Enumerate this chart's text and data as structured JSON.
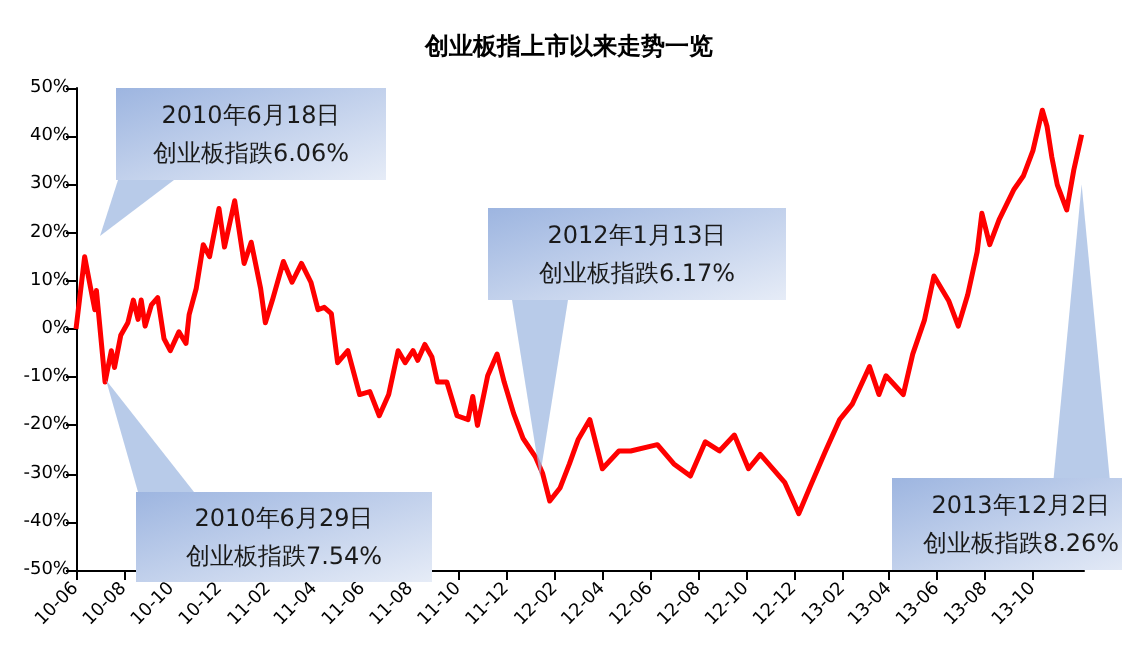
{
  "chart_data": {
    "type": "line",
    "title": "创业板指上市以来走势一览",
    "x": [
      "2010-06-01",
      "2010-06-12",
      "2010-06-19",
      "2010-06-25",
      "2010-06-27",
      "2010-07-08",
      "2010-07-16",
      "2010-07-20",
      "2010-07-28",
      "2010-08-06",
      "2010-08-13",
      "2010-08-19",
      "2010-08-23",
      "2010-08-28",
      "2010-09-05",
      "2010-09-13",
      "2010-09-21",
      "2010-09-29",
      "2010-10-10",
      "2010-10-19",
      "2010-10-23",
      "2010-11-01",
      "2010-11-10",
      "2010-11-18",
      "2010-11-30",
      "2010-12-07",
      "2010-12-20",
      "2011-01-01",
      "2011-01-10",
      "2011-01-22",
      "2011-01-28",
      "2011-02-06",
      "2011-02-20",
      "2011-03-03",
      "2011-03-15",
      "2011-03-27",
      "2011-04-05",
      "2011-04-13",
      "2011-04-22",
      "2011-04-30",
      "2011-05-13",
      "2011-05-28",
      "2011-06-10",
      "2011-06-22",
      "2011-07-04",
      "2011-07-16",
      "2011-07-25",
      "2011-08-04",
      "2011-08-10",
      "2011-08-19",
      "2011-08-28",
      "2011-09-04",
      "2011-09-16",
      "2011-09-29",
      "2011-10-13",
      "2011-10-19",
      "2011-10-25",
      "2011-11-07",
      "2011-11-19",
      "2011-11-28",
      "2011-12-10",
      "2011-12-22",
      "2012-01-07",
      "2012-01-16",
      "2012-01-25",
      "2012-02-07",
      "2012-02-19",
      "2012-03-01",
      "2012-03-16",
      "2012-04-01",
      "2012-04-22",
      "2012-05-07",
      "2012-06-10",
      "2012-07-01",
      "2012-07-22",
      "2012-08-10",
      "2012-08-28",
      "2012-09-16",
      "2012-10-04",
      "2012-10-19",
      "2012-11-19",
      "2012-12-07",
      "2012-12-22",
      "2013-01-10",
      "2013-01-28",
      "2013-02-13",
      "2013-03-07",
      "2013-03-19",
      "2013-03-28",
      "2013-04-19",
      "2013-05-01",
      "2013-05-16",
      "2013-05-28",
      "2013-06-16",
      "2013-06-28",
      "2013-07-10",
      "2013-07-22",
      "2013-07-28",
      "2013-08-07",
      "2013-08-19",
      "2013-09-07",
      "2013-09-19",
      "2013-10-01",
      "2013-10-13",
      "2013-10-19",
      "2013-10-25",
      "2013-11-01",
      "2013-11-13",
      "2013-11-22",
      "2013-12-02"
    ],
    "series": [
      {
        "color": "#ff0000",
        "values": [
          0,
          15,
          9,
          4,
          8,
          -11,
          -4.5,
          -8,
          -1.3,
          1.3,
          6,
          2,
          6,
          0.6,
          5,
          6.5,
          -2,
          -4.5,
          -0.6,
          -3,
          3,
          8.4,
          17.5,
          15,
          25,
          17,
          26.6,
          13.6,
          18,
          8.4,
          1.3,
          6,
          14,
          9.7,
          13.6,
          9.7,
          4,
          4.5,
          3.2,
          -7,
          -4.5,
          -13.6,
          -13,
          -18,
          -13.6,
          -4.5,
          -7,
          -4.5,
          -6.5,
          -3.2,
          -5.8,
          -11,
          -11,
          -18,
          -18.8,
          -14,
          -20,
          -9.7,
          -5.2,
          -11,
          -17.5,
          -22.7,
          -26.6,
          -30,
          -35.7,
          -33,
          -28,
          -23,
          -18.8,
          -29,
          -25.3,
          -25.3,
          -24,
          -28,
          -30.5,
          -23.4,
          -25.3,
          -22,
          -29,
          -26,
          -31.8,
          -38.3,
          -32.5,
          -25.3,
          -18.8,
          -15.6,
          -7.8,
          -13.6,
          -9.7,
          -13.6,
          -5.2,
          1.9,
          11,
          5.8,
          0.6,
          7.1,
          16,
          24,
          17.5,
          22.7,
          29,
          31.8,
          37,
          45.4,
          42,
          35.7,
          29.9,
          24.7,
          33,
          40.3
        ]
      }
    ],
    "xlim": [
      "2010-06-01",
      "2013-12-05"
    ],
    "xticks": [
      {
        "value": "2010-06-01",
        "label": "10-06"
      },
      {
        "value": "2010-08-01",
        "label": "10-08"
      },
      {
        "value": "2010-10-01",
        "label": "10-10"
      },
      {
        "value": "2010-12-01",
        "label": "10-12"
      },
      {
        "value": "2011-02-01",
        "label": "11-02"
      },
      {
        "value": "2011-04-01",
        "label": "11-04"
      },
      {
        "value": "2011-06-01",
        "label": "11-06"
      },
      {
        "value": "2011-08-01",
        "label": "11-08"
      },
      {
        "value": "2011-10-01",
        "label": "11-10"
      },
      {
        "value": "2011-12-01",
        "label": "11-12"
      },
      {
        "value": "2012-02-01",
        "label": "12-02"
      },
      {
        "value": "2012-04-01",
        "label": "12-04"
      },
      {
        "value": "2012-06-01",
        "label": "12-06"
      },
      {
        "value": "2012-08-01",
        "label": "12-08"
      },
      {
        "value": "2012-10-01",
        "label": "12-10"
      },
      {
        "value": "2012-12-01",
        "label": "12-12"
      },
      {
        "value": "2013-02-01",
        "label": "13-02"
      },
      {
        "value": "2013-04-01",
        "label": "13-04"
      },
      {
        "value": "2013-06-01",
        "label": "13-06"
      },
      {
        "value": "2013-08-01",
        "label": "13-08"
      },
      {
        "value": "2013-10-01",
        "label": "13-10"
      }
    ],
    "ylim": [
      -50,
      50
    ],
    "yticks": [
      {
        "value": -50,
        "label": "-50%"
      },
      {
        "value": -40,
        "label": "-40%"
      },
      {
        "value": -30,
        "label": "-30%"
      },
      {
        "value": -20,
        "label": "-20%"
      },
      {
        "value": -10,
        "label": "-10%"
      },
      {
        "value": 0,
        "label": "0%"
      },
      {
        "value": 10,
        "label": "10%"
      },
      {
        "value": 20,
        "label": "20%"
      },
      {
        "value": 30,
        "label": "30%"
      },
      {
        "value": 40,
        "label": "40%"
      },
      {
        "value": 50,
        "label": "50%"
      }
    ],
    "annotations": [
      "2010年6月18日",
      "创业板指跌6.06%",
      "2010年6月29日",
      "创业板指跌7.54%",
      "2012年1月13日",
      "创业板指跌6.17%",
      {
        "text": "2013年12月2日",
        "x": "2013-12-02",
        "y": 30
      },
      "创业板指跌8.26%"
    ],
    "grid": false,
    "marker": "none",
    "line_style": "solid"
  }
}
